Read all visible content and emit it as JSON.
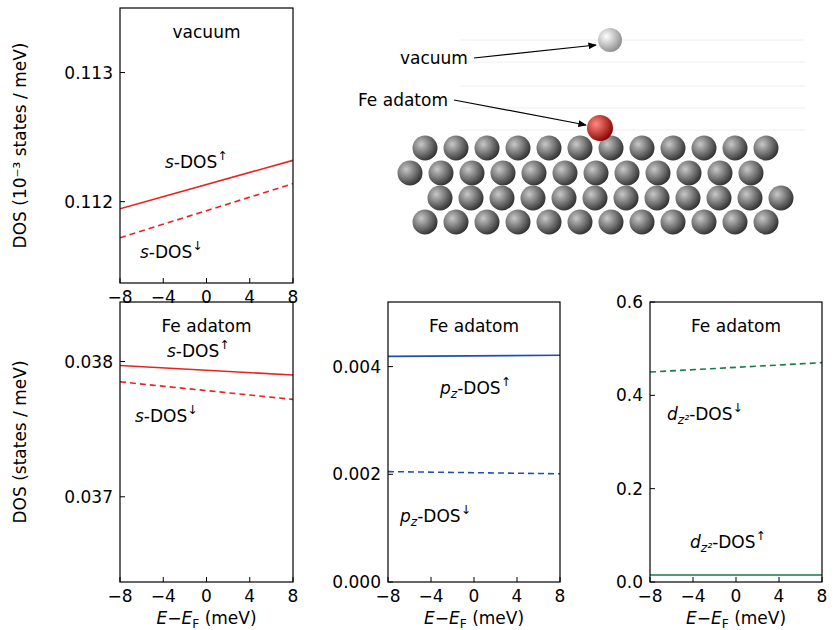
{
  "chart_data": [
    {
      "type": "line",
      "title": "vacuum",
      "ylabel": "DOS (10⁻³ states / meV)",
      "xlim": [
        -8,
        8
      ],
      "xticks": [
        {
          "value": -8,
          "label": "−8"
        },
        {
          "value": -4,
          "label": "−4"
        },
        0,
        4,
        8
      ],
      "ylim": [
        0.11137,
        0.1135
      ],
      "yticks": [
        0.112,
        0.113
      ],
      "series": [
        {
          "name": "s-DOS↑",
          "color": "#e8231f",
          "line_style": "solid",
          "x": [
            -8,
            8
          ],
          "values": [
            0.111945,
            0.11232
          ]
        },
        {
          "name": "s-DOS↓",
          "color": "#e8231f",
          "line_style": "dashed",
          "x": [
            -8,
            8
          ],
          "values": [
            0.11172,
            0.11214
          ]
        }
      ]
    },
    {
      "type": "line",
      "title": "Fe adatom",
      "xlabel": "E−EF (meV)",
      "ylabel": "DOS (states / meV)",
      "xlim": [
        -8,
        8
      ],
      "xticks": [
        {
          "value": -8,
          "label": "−8"
        },
        {
          "value": -4,
          "label": "−4"
        },
        0,
        4,
        8
      ],
      "ylim": [
        0.03637,
        0.03844
      ],
      "yticks": [
        0.037,
        0.038
      ],
      "series": [
        {
          "name": "s-DOS↑",
          "color": "#e8231f",
          "line_style": "solid",
          "x": [
            -8,
            8
          ],
          "values": [
            0.03797,
            0.0379
          ]
        },
        {
          "name": "s-DOS↓",
          "color": "#e8231f",
          "line_style": "dashed",
          "x": [
            -8,
            8
          ],
          "values": [
            0.03785,
            0.03772
          ]
        }
      ]
    },
    {
      "type": "line",
      "title": "Fe adatom",
      "xlabel": "E−EF (meV)",
      "xlim": [
        -8,
        8
      ],
      "xticks": [
        {
          "value": -8,
          "label": "−8"
        },
        {
          "value": -4,
          "label": "−4"
        },
        0,
        4,
        8
      ],
      "ylim": [
        0,
        0.0052
      ],
      "yticks": [
        {
          "value": 0,
          "label": "0.000"
        },
        0.002,
        0.004
      ],
      "series": [
        {
          "name": "pz-DOS↑",
          "color": "#1f4fb4",
          "line_style": "solid",
          "x": [
            -8,
            8
          ],
          "values": [
            0.00419,
            0.00421
          ]
        },
        {
          "name": "pz-DOS↓",
          "color": "#1f4fb4",
          "line_style": "dashed",
          "x": [
            -8,
            8
          ],
          "values": [
            0.00205,
            0.00201
          ]
        }
      ]
    },
    {
      "type": "line",
      "title": "Fe adatom",
      "xlabel": "E−EF (meV)",
      "xlim": [
        -8,
        8
      ],
      "xticks": [
        {
          "value": -8,
          "label": "−8"
        },
        {
          "value": -4,
          "label": "−4"
        },
        0,
        4,
        8
      ],
      "ylim": [
        0,
        0.6
      ],
      "yticks": [
        {
          "value": 0,
          "label": "0.0"
        },
        0.2,
        0.4,
        0.6
      ],
      "series": [
        {
          "name": "dz²-DOS↓",
          "color": "#1a7a4a",
          "line_style": "dashed",
          "x": [
            -8,
            8
          ],
          "values": [
            0.45,
            0.47
          ]
        },
        {
          "name": "dz²-DOS↑",
          "color": "#1a7a4a",
          "line_style": "solid",
          "x": [
            -8,
            8
          ],
          "values": [
            0.015,
            0.015
          ]
        }
      ]
    }
  ],
  "diagram": {
    "labels": [
      "vacuum",
      "Fe adatom"
    ]
  }
}
